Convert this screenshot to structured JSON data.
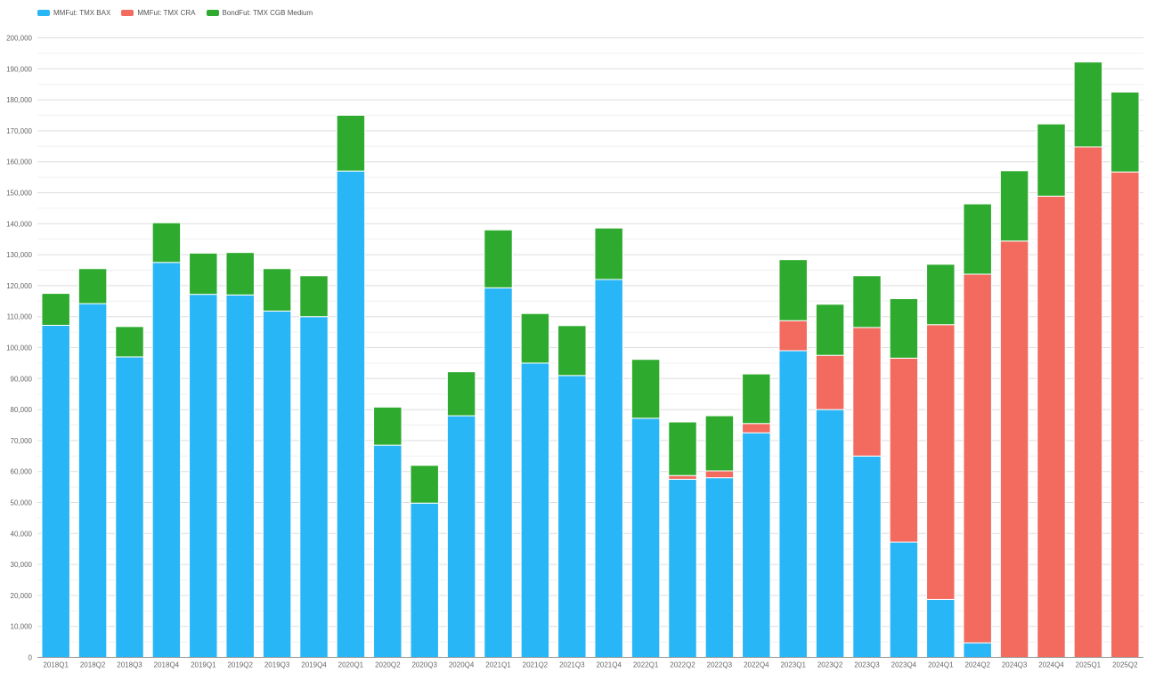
{
  "colors": {
    "bax": "#29b6f6",
    "cra": "#f26b5e",
    "cgb": "#2eab2e",
    "grid": "#dddddd",
    "axis_text": "#666666"
  },
  "chart_data": {
    "type": "bar",
    "stacked": true,
    "title": "",
    "xlabel": "",
    "ylabel": "",
    "ylim": [
      0,
      200000
    ],
    "yticks": [
      0,
      10000,
      20000,
      30000,
      40000,
      50000,
      60000,
      70000,
      80000,
      90000,
      100000,
      110000,
      120000,
      130000,
      140000,
      150000,
      160000,
      170000,
      180000,
      190000,
      200000
    ],
    "ytick_labels": [
      "0",
      "10,000",
      "20,000",
      "30,000",
      "40,000",
      "50,000",
      "60,000",
      "70,000",
      "80,000",
      "90,000",
      "100,000",
      "110,000",
      "120,000",
      "130,000",
      "140,000",
      "150,000",
      "160,000",
      "170,000",
      "180,000",
      "190,000",
      "200,000"
    ],
    "grid": true,
    "legend_position": "top-left",
    "categories": [
      "2018Q1",
      "2018Q2",
      "2018Q3",
      "2018Q4",
      "2019Q1",
      "2019Q2",
      "2019Q3",
      "2019Q4",
      "2020Q1",
      "2020Q2",
      "2020Q3",
      "2020Q4",
      "2021Q1",
      "2021Q2",
      "2021Q3",
      "2021Q4",
      "2022Q1",
      "2022Q2",
      "2022Q3",
      "2022Q4",
      "2023Q1",
      "2023Q2",
      "2023Q3",
      "2023Q4",
      "2024Q1",
      "2024Q2",
      "2024Q3",
      "2024Q4",
      "2025Q1",
      "2025Q2"
    ],
    "series": [
      {
        "name": "MMFut: TMX BAX",
        "key": "bax",
        "values": [
          107200,
          114200,
          97000,
          127500,
          117200,
          117000,
          111800,
          110000,
          157000,
          68500,
          49800,
          78000,
          119300,
          95000,
          91000,
          122000,
          77200,
          57500,
          58000,
          72500,
          99000,
          80000,
          65000,
          37200,
          18700,
          4700,
          0,
          0,
          0,
          0
        ]
      },
      {
        "name": "MMFut: TMX CRA",
        "key": "cra",
        "values": [
          0,
          0,
          0,
          0,
          0,
          0,
          0,
          0,
          0,
          0,
          0,
          0,
          0,
          0,
          0,
          0,
          0,
          1200,
          2200,
          3000,
          9700,
          17500,
          41500,
          59400,
          88700,
          119000,
          134400,
          148900,
          164800,
          156700
        ]
      },
      {
        "name": "BondFut: TMX CGB Medium",
        "key": "cgb",
        "values": [
          10300,
          11300,
          9800,
          12800,
          13300,
          13700,
          13700,
          13200,
          18000,
          12300,
          12200,
          14200,
          18700,
          16000,
          16100,
          16600,
          19000,
          17300,
          17800,
          16000,
          19700,
          16500,
          16700,
          19200,
          19500,
          22700,
          22700,
          23300,
          27400,
          25800
        ]
      }
    ]
  }
}
